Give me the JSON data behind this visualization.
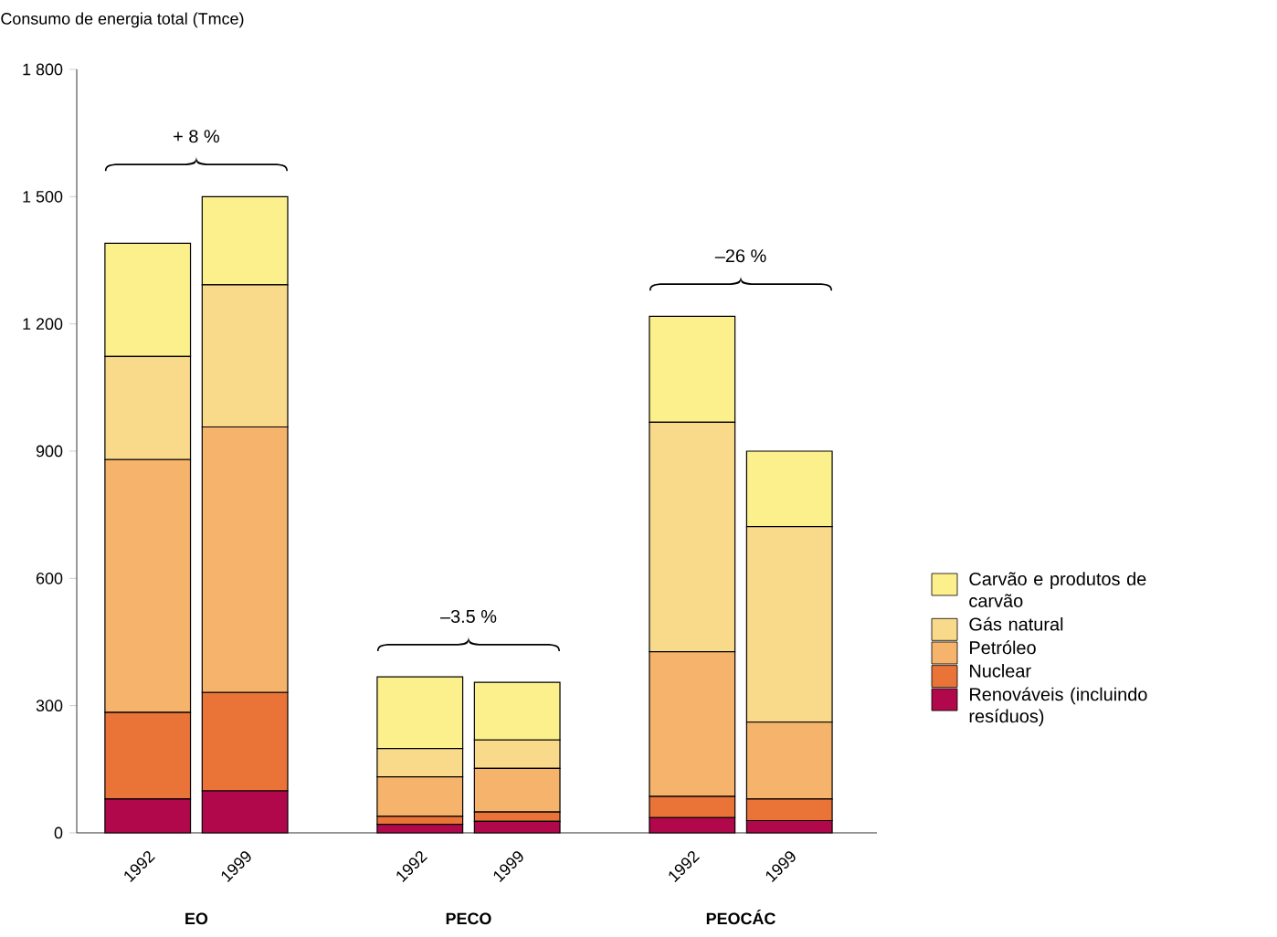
{
  "chart_data": {
    "type": "bar",
    "stacked": true,
    "ylabel": "Consumo de energia total (Tmce)",
    "categories": [
      "1992",
      "1999",
      "1992",
      "1999",
      "1992",
      "1999"
    ],
    "series": [
      {
        "name": "Renováveis (incluindo resíduos)",
        "color": "#b0084a",
        "values": [
          80,
          99,
          20,
          27,
          36,
          29
        ]
      },
      {
        "name": "Nuclear",
        "color": "#ea7438",
        "values": [
          204,
          232,
          19,
          22,
          50,
          51
        ]
      },
      {
        "name": "Petróleo",
        "color": "#f5b36c",
        "values": [
          596,
          626,
          93,
          103,
          341,
          181
        ]
      },
      {
        "name": "Gás natural",
        "color": "#f9d98a",
        "values": [
          243,
          335,
          67,
          67,
          541,
          461
        ]
      },
      {
        "name": "Carvão e produtos de carvão",
        "color": "#fcf08c",
        "values": [
          267,
          208,
          169,
          136,
          250,
          178
        ]
      }
    ],
    "ylim": [
      0,
      1800
    ],
    "yticks": [
      0,
      300,
      600,
      900,
      {
        "value": 1200,
        "label": "1 200"
      },
      {
        "value": 1500,
        "label": "1 500"
      },
      {
        "value": 1800,
        "label": "1 800"
      }
    ],
    "annotations": [
      "+ 8 %",
      "–3.5 %",
      "–26 %",
      "EO",
      "PECO",
      "PEOCÁC"
    ],
    "legend": "right",
    "grid": false
  }
}
